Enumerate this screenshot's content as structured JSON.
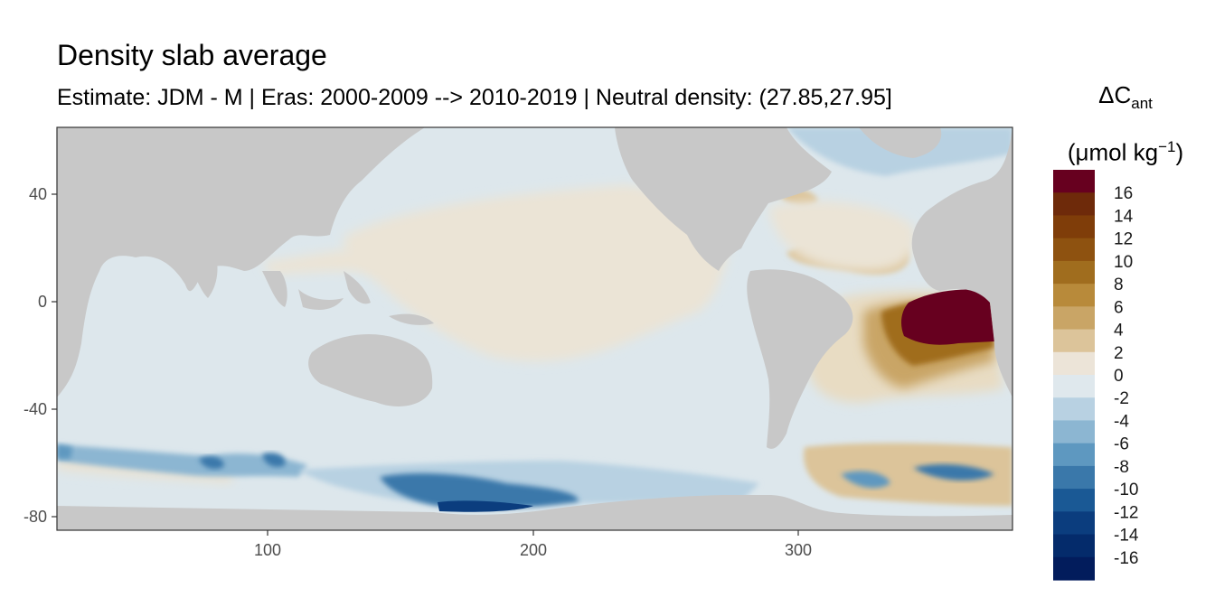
{
  "title": "Density slab average",
  "subtitle": "Estimate: JDM - M | Eras: 2000-2009 --> 2010-2019 | Neutral density: (27.85,27.95]",
  "legend": {
    "symbol": "ΔC",
    "symbol_sub": "ant",
    "unit_prefix": "(μmol kg",
    "unit_sup": "−1",
    "unit_suffix": ")",
    "levels": [
      "16",
      "14",
      "12",
      "10",
      "8",
      "6",
      "4",
      "2",
      "0",
      "-2",
      "-4",
      "-6",
      "-8",
      "-10",
      "-12",
      "-14",
      "-16"
    ],
    "colors": [
      "#67001f",
      "#6e2a0a",
      "#7f3d09",
      "#8e5210",
      "#a06d1e",
      "#b88a3a",
      "#c9a566",
      "#dcc49a",
      "#ece4d8",
      "#dfe8ed",
      "#b8d1e2",
      "#8cb6d2",
      "#5e98c0",
      "#3a78aa",
      "#1a5995",
      "#0b3d7e",
      "#042b6b",
      "#021c5c"
    ]
  },
  "axes": {
    "x_ticks": [
      "100",
      "200",
      "300"
    ],
    "y_ticks": [
      "40",
      "0",
      "-40",
      "-80"
    ]
  },
  "chart_data": {
    "type": "heatmap",
    "title": "Density slab average",
    "subtitle": "Estimate: JDM - M | Eras: 2000-2009 --> 2010-2019 | Neutral density: (27.85,27.95]",
    "xlim": [
      20,
      380
    ],
    "ylim": [
      -85,
      65
    ],
    "x_ticks": [
      100,
      200,
      300
    ],
    "y_ticks": [
      40,
      0,
      -40,
      -80
    ],
    "colorbar_label": "ΔCant (μmol kg−1)",
    "colorbar_range": [
      -16,
      16
    ],
    "land_color": "#c8c8c8",
    "features": [
      {
        "region": "Equatorial/South Atlantic (lon 340-372, lat 5 to -15)",
        "value": 18
      },
      {
        "region": "South Atlantic plume (lon 320-345, lat -20 to -35)",
        "value": 2
      },
      {
        "region": "Central Pacific (lon 190-280, lat 30 to -20)",
        "value": 1
      },
      {
        "region": "Indian and Pacific background",
        "value": -1
      },
      {
        "region": "Ross Sea shelf (lon 165-240, lat -72 to -78)",
        "value": -12
      },
      {
        "region": "Antarctic margin Indian sector (lon 70-110, lat -60 to -65)",
        "value": -8
      },
      {
        "region": "Weddell Sea (lon 330-375, lat -62 to -72)",
        "value": 3
      }
    ]
  }
}
